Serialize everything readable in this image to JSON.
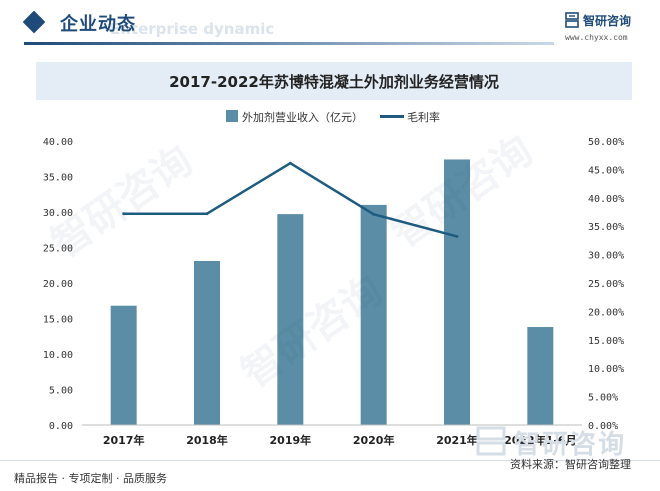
{
  "header": {
    "section_title": "企业动态",
    "watermark_text": "Enterprise dynamic"
  },
  "brand": {
    "name": "智研咨询",
    "url": "www.chyxx.com"
  },
  "colors": {
    "bar": "#5b8ea6",
    "line": "#1d5c80",
    "header_accent": "#1f4b7a",
    "title_band": "#e4edf6"
  },
  "footer": {
    "slogan": "精品报告 · 专项定制 · 品质服务",
    "source": "资料来源：智研咨询整理",
    "logo_text": "智研咨询"
  },
  "watermark": {
    "text": "智研咨询"
  },
  "chart_data": {
    "type": "bar",
    "title": "2017-2022年苏博特混凝土外加剂业务经营情况",
    "categories": [
      "2017年",
      "2018年",
      "2019年",
      "2020年",
      "2021年",
      "2022年1-6月"
    ],
    "series": [
      {
        "name": "外加剂营业收入（亿元）",
        "type": "bar",
        "axis": "left",
        "values": [
          16.8,
          23.1,
          29.7,
          31.0,
          37.4,
          13.8
        ]
      },
      {
        "name": "毛利率",
        "type": "line",
        "axis": "right",
        "values": [
          37.2,
          37.2,
          46.1,
          37.1,
          33.2,
          null
        ]
      }
    ],
    "y_left": {
      "min": 0,
      "max": 40,
      "ticks": [
        "0.00",
        "5.00",
        "10.00",
        "15.00",
        "20.00",
        "25.00",
        "30.00",
        "35.00",
        "40.00"
      ]
    },
    "y_right": {
      "min": 0,
      "max": 50,
      "ticks": [
        "0.00%",
        "5.00%",
        "10.00%",
        "15.00%",
        "20.00%",
        "25.00%",
        "30.00%",
        "35.00%",
        "40.00%",
        "45.00%",
        "50.00%"
      ]
    },
    "grid": false,
    "legend": "top-center"
  }
}
